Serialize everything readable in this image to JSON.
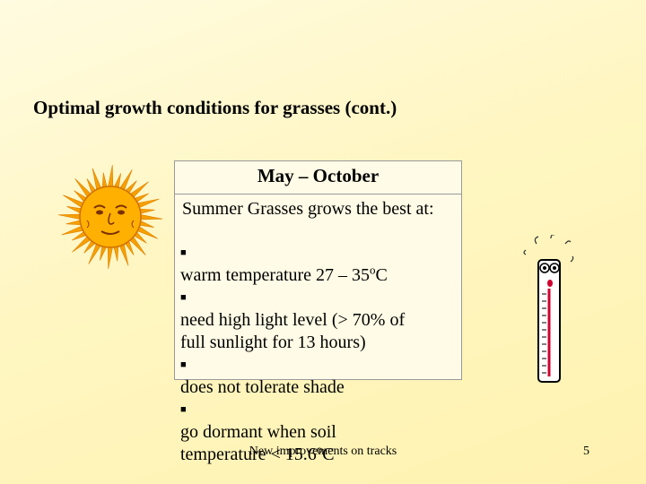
{
  "slide": {
    "title": "Optimal growth conditions for grasses (cont.)",
    "box": {
      "header": "May – October",
      "intro": "Summer Grasses grows the best at:",
      "bullets": [
        {
          "lines": [
            [
              {
                "text": "warm temperature 27 – 35"
              },
              {
                "sup": "o"
              },
              {
                "text": "C"
              }
            ]
          ]
        },
        {
          "lines": [
            [
              {
                "text": "need high light level (> 70% of"
              }
            ],
            [
              {
                "text": "full sunlight for 13 hours)"
              }
            ]
          ]
        },
        {
          "lines": [
            [
              {
                "text": "does not tolerate shade"
              }
            ]
          ]
        },
        {
          "lines": [
            [
              {
                "text": "go dormant when soil"
              }
            ],
            [
              {
                "text": "temperature < 15.6"
              },
              {
                "sup": "o"
              },
              {
                "text": "C"
              }
            ]
          ]
        }
      ]
    },
    "footer": "New improvements on tracks",
    "page_number": "5"
  }
}
